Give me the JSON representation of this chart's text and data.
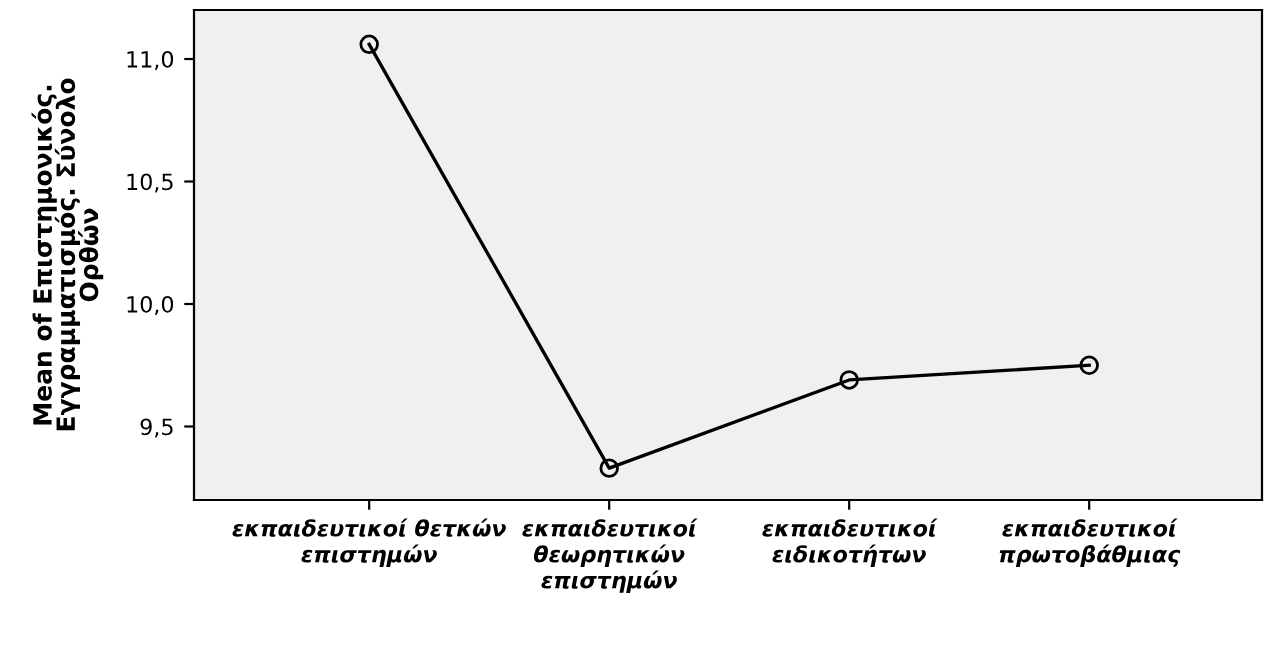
{
  "chart_data": {
    "type": "line",
    "ylabel": "Mean of Επιστημονικός.\nΕγγραμματισμός. Σύνολο\nΟρθών",
    "categories": [
      "εκπαιδευτικοί θετκών\nεπιστημών",
      "εκπαιδευτικοί\nθεωρητικών\nεπιστημών",
      "εκπαιδευτικοί\nειδικοτήτων",
      "εκπαιδευτικοί\nπρωτοβάθμιας"
    ],
    "series": [
      {
        "color": "#000000",
        "values": [
          11.06,
          9.33,
          9.69,
          9.75
        ]
      }
    ],
    "ylim": [
      9.2,
      11.2
    ],
    "yticks": [
      {
        "value": 9.5,
        "label": "9,5"
      },
      {
        "value": 10.0,
        "label": "10,0"
      },
      {
        "value": 10.5,
        "label": "10,5"
      },
      {
        "value": 11.0,
        "label": "11,0"
      }
    ],
    "grid": false,
    "legend": false,
    "marker": "circle",
    "line_style": "solid"
  }
}
